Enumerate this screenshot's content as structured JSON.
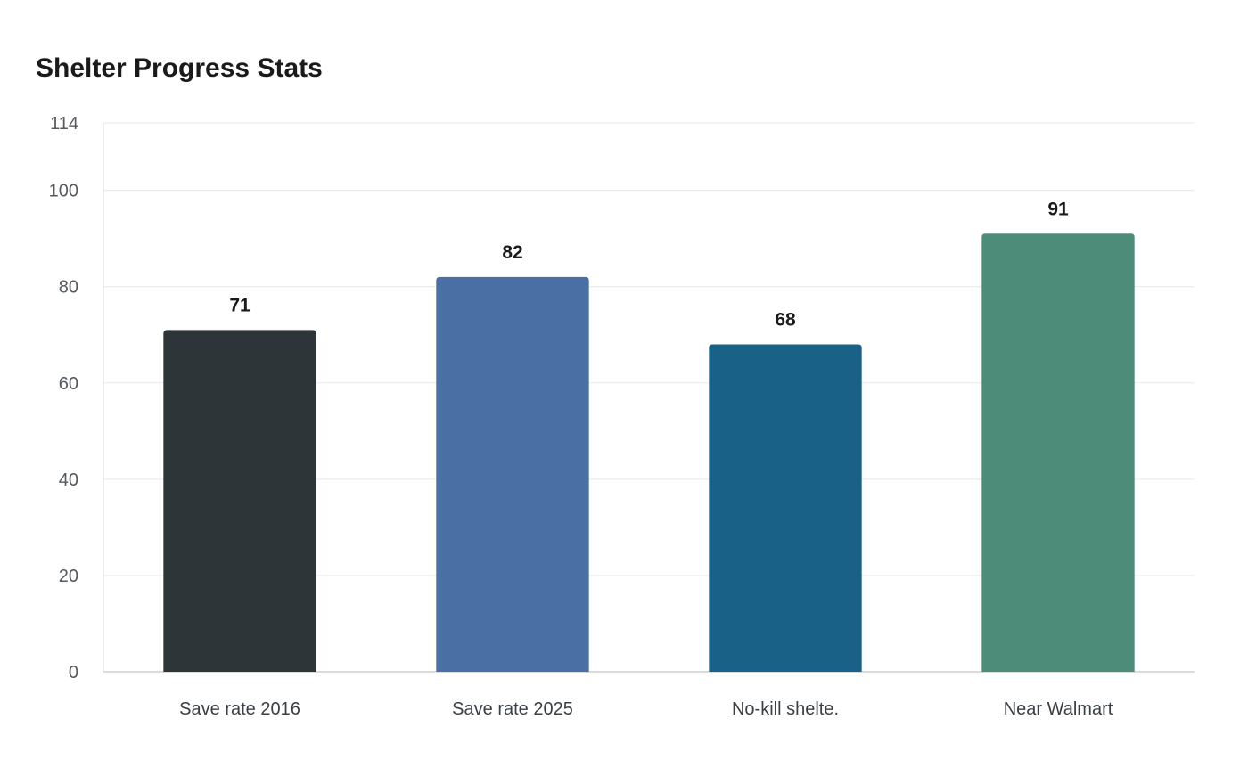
{
  "chart_data": {
    "type": "bar",
    "title": "Shelter Progress Stats",
    "categories": [
      "Save rate 2016",
      "Save rate 2025",
      "No-kill shelte.",
      "Near Walmart"
    ],
    "values": [
      71,
      82,
      68,
      91
    ],
    "value_labels": [
      "71",
      "82",
      "68",
      "91"
    ],
    "colors": [
      "#2e3538",
      "#4a6fa5",
      "#1a6187",
      "#4e8c7a"
    ],
    "ylim": [
      0,
      114
    ],
    "yticks": [
      0,
      20,
      40,
      60,
      80,
      100,
      114
    ],
    "ytick_labels": [
      "0",
      "20",
      "40",
      "60",
      "80",
      "100",
      "114"
    ],
    "xlabel": "",
    "ylabel": "",
    "grid": true,
    "legend": "none"
  }
}
